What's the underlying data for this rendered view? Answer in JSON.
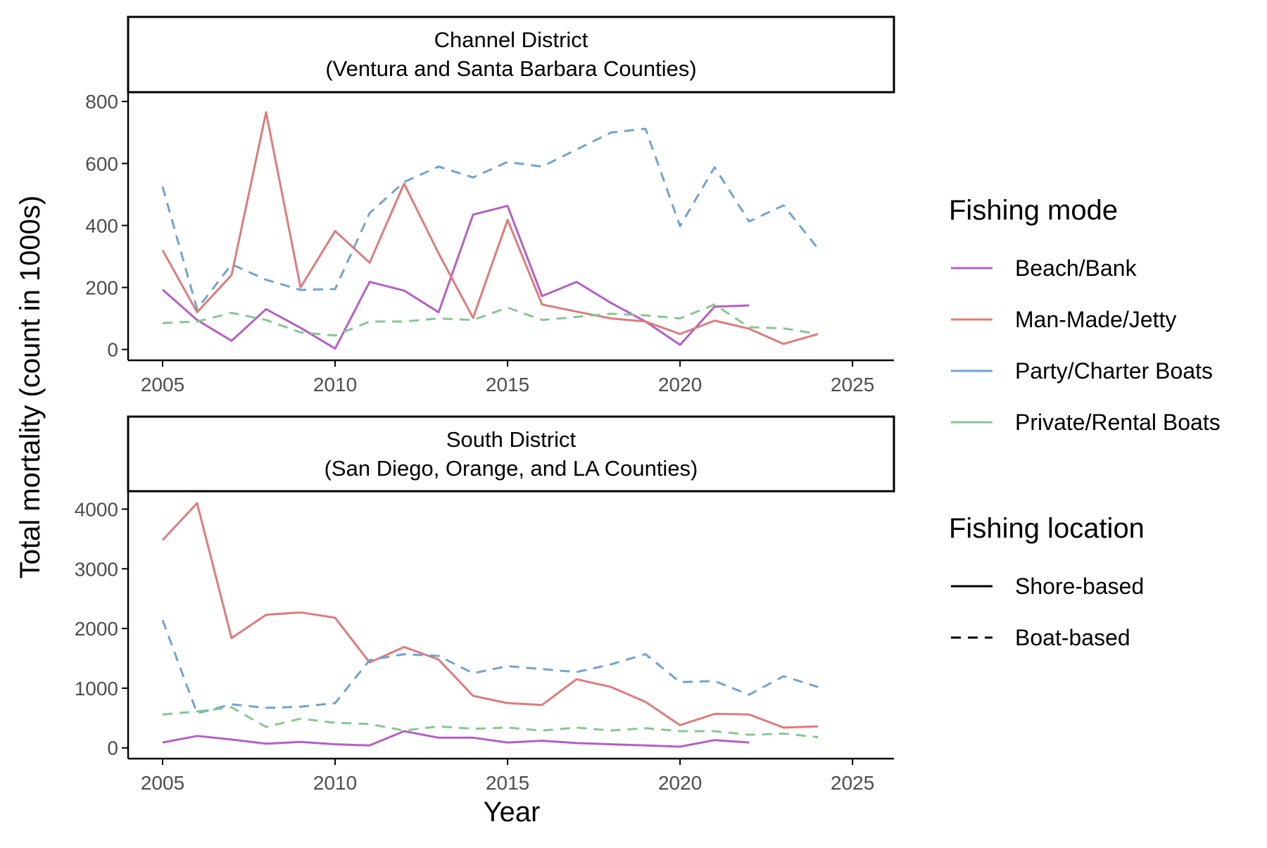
{
  "chart_data": {
    "type": "line",
    "ylabel": "Total mortality (count in 1000s)",
    "xlabel": "Year",
    "xlim": [
      2004,
      2026.2
    ],
    "xticks": [
      2005,
      2010,
      2015,
      2020,
      2025
    ],
    "colors": {
      "Beach/Bank": "#B45FC7",
      "Man-Made/Jetty": "#E07A7A",
      "Party/Charter Boats": "#6FA3D3",
      "Private/Rental Boats": "#86C792"
    },
    "legend": {
      "position": "right",
      "mode_title": "Fishing mode",
      "modes": [
        "Beach/Bank",
        "Man-Made/Jetty",
        "Party/Charter Boats",
        "Private/Rental Boats"
      ],
      "location_title": "Fishing location",
      "locations": [
        {
          "label": "Shore-based",
          "dash": "solid"
        },
        {
          "label": "Boat-based",
          "dash": "dashed"
        }
      ]
    },
    "panels": [
      {
        "strip_line1": "Channel District",
        "strip_line2": "(Ventura and Santa Barbara Counties)",
        "ylim": [
          -35,
          830
        ],
        "yticks": [
          0,
          200,
          400,
          600,
          800
        ],
        "series": [
          {
            "name": "Beach/Bank",
            "location": "Shore-based",
            "x": [
              2005,
              2006,
              2007,
              2008,
              2009,
              2010,
              2011,
              2012,
              2013,
              2014,
              2015,
              2016,
              2017,
              2018,
              2019,
              2020,
              2021,
              2022
            ],
            "y": [
              193,
              95,
              28,
              130,
              70,
              3,
              218,
              190,
              120,
              435,
              463,
              172,
              218,
              150,
              90,
              15,
              138,
              142
            ]
          },
          {
            "name": "Man-Made/Jetty",
            "location": "Shore-based",
            "x": [
              2005,
              2006,
              2007,
              2008,
              2009,
              2010,
              2011,
              2012,
              2013,
              2014,
              2015,
              2016,
              2017,
              2018,
              2019,
              2020,
              2021,
              2022,
              2023,
              2024
            ],
            "y": [
              320,
              120,
              240,
              765,
              200,
              382,
              280,
              535,
              310,
              102,
              418,
              145,
              122,
              100,
              90,
              50,
              93,
              67,
              18,
              50
            ]
          },
          {
            "name": "Party/Charter Boats",
            "location": "Boat-based",
            "x": [
              2005,
              2006,
              2007,
              2008,
              2009,
              2010,
              2011,
              2012,
              2013,
              2014,
              2015,
              2016,
              2017,
              2018,
              2019,
              2020,
              2021,
              2022,
              2023,
              2024
            ],
            "y": [
              525,
              130,
              275,
              225,
              192,
              195,
              440,
              540,
              590,
              555,
              605,
              590,
              645,
              700,
              712,
              398,
              588,
              413,
              465,
              325
            ]
          },
          {
            "name": "Private/Rental Boats",
            "location": "Boat-based",
            "x": [
              2005,
              2006,
              2007,
              2008,
              2009,
              2010,
              2011,
              2012,
              2013,
              2014,
              2015,
              2016,
              2017,
              2018,
              2019,
              2020,
              2021,
              2022,
              2023,
              2024
            ],
            "y": [
              85,
              90,
              118,
              95,
              55,
              45,
              90,
              90,
              100,
              95,
              135,
              95,
              105,
              115,
              110,
              100,
              145,
              72,
              68,
              50
            ]
          }
        ]
      },
      {
        "strip_line1": "South District",
        "strip_line2": "(San Diego, Orange, and LA Counties)",
        "ylim": [
          -180,
          4300
        ],
        "yticks": [
          0,
          1000,
          2000,
          3000,
          4000
        ],
        "series": [
          {
            "name": "Beach/Bank",
            "location": "Shore-based",
            "x": [
              2005,
              2006,
              2007,
              2008,
              2009,
              2010,
              2011,
              2012,
              2013,
              2014,
              2015,
              2016,
              2017,
              2018,
              2019,
              2020,
              2021,
              2022
            ],
            "y": [
              90,
              200,
              140,
              70,
              100,
              60,
              40,
              280,
              170,
              170,
              90,
              120,
              80,
              60,
              40,
              20,
              130,
              90
            ]
          },
          {
            "name": "Man-Made/Jetty",
            "location": "Shore-based",
            "x": [
              2005,
              2006,
              2007,
              2008,
              2009,
              2010,
              2011,
              2012,
              2013,
              2014,
              2015,
              2016,
              2017,
              2018,
              2019,
              2020,
              2021,
              2022,
              2023,
              2024
            ],
            "y": [
              3480,
              4100,
              1840,
              2230,
              2270,
              2180,
              1430,
              1690,
              1480,
              870,
              750,
              720,
              1150,
              1020,
              770,
              380,
              570,
              560,
              340,
              360
            ]
          },
          {
            "name": "Party/Charter Boats",
            "location": "Boat-based",
            "x": [
              2005,
              2006,
              2007,
              2008,
              2009,
              2010,
              2011,
              2012,
              2013,
              2014,
              2015,
              2016,
              2017,
              2018,
              2019,
              2020,
              2021,
              2022,
              2023,
              2024
            ],
            "y": [
              2140,
              580,
              730,
              670,
              690,
              750,
              1470,
              1570,
              1540,
              1250,
              1370,
              1320,
              1270,
              1400,
              1570,
              1100,
              1120,
              890,
              1200,
              1020
            ]
          },
          {
            "name": "Private/Rental Boats",
            "location": "Boat-based",
            "x": [
              2005,
              2006,
              2007,
              2008,
              2009,
              2010,
              2011,
              2012,
              2013,
              2014,
              2015,
              2016,
              2017,
              2018,
              2019,
              2020,
              2021,
              2022,
              2023,
              2024
            ],
            "y": [
              560,
              610,
              680,
              350,
              490,
              420,
              400,
              290,
              360,
              320,
              340,
              290,
              340,
              290,
              330,
              280,
              280,
              220,
              240,
              180
            ]
          }
        ]
      }
    ]
  }
}
